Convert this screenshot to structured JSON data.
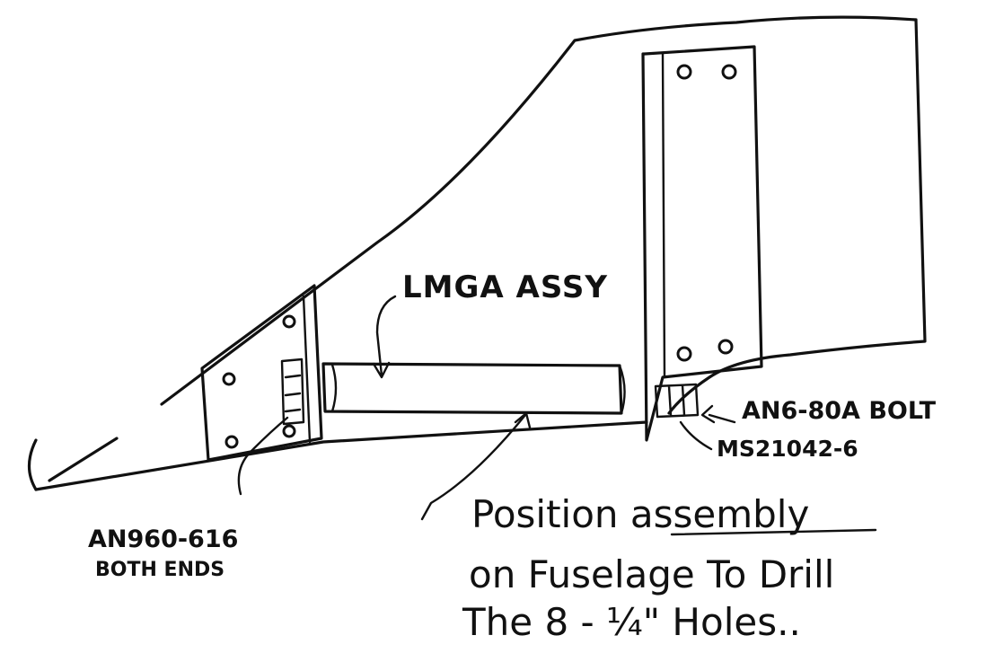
{
  "labels": {
    "lmga": "LMGA ASSY",
    "bolt": "AN6-80A BOLT",
    "nut": "MS21042-6",
    "washer_part": "AN960-616",
    "washer_note": "BOTH ENDS"
  },
  "note": {
    "line1_prefix": "Position ",
    "line1_emph": "assembly",
    "line2": "on Fuselage To Drill",
    "line3": "The 8 - ¼\" Holes.."
  }
}
